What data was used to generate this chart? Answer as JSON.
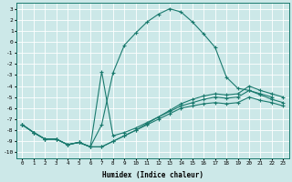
{
  "xlabel": "Humidex (Indice chaleur)",
  "bg_color": "#cce8e8",
  "grid_color": "#ffffff",
  "line_color": "#1a7a6e",
  "xlim": [
    -0.5,
    23.5
  ],
  "ylim": [
    -10.5,
    3.5
  ],
  "series": [
    {
      "x": [
        0,
        1,
        2,
        3,
        4,
        5,
        6,
        7,
        8,
        9,
        10,
        11,
        12,
        13,
        14,
        15,
        16,
        17,
        18,
        19,
        20,
        21,
        22
      ],
      "y": [
        -7.5,
        -8.2,
        -8.8,
        -8.8,
        -9.3,
        -9.1,
        -9.5,
        -7.5,
        -2.8,
        -0.3,
        0.8,
        1.8,
        2.5,
        3.0,
        2.7,
        1.8,
        0.7,
        -0.5,
        -3.2,
        -4.2,
        -4.4,
        -4.7,
        -5.0
      ]
    },
    {
      "x": [
        0,
        1,
        2,
        3,
        4,
        5,
        6,
        7,
        8,
        9,
        10,
        11,
        12,
        13,
        14,
        15,
        16,
        17,
        18,
        19,
        20,
        21,
        22,
        23
      ],
      "y": [
        -7.5,
        -8.2,
        -8.8,
        -8.8,
        -9.3,
        -9.1,
        -9.5,
        -2.7,
        -8.5,
        -8.2,
        -7.8,
        -7.3,
        -6.8,
        -6.3,
        -5.8,
        -5.5,
        -5.2,
        -5.0,
        -5.1,
        -5.0,
        -4.4,
        -4.8,
        -5.2,
        -5.5
      ]
    },
    {
      "x": [
        0,
        1,
        2,
        3,
        4,
        5,
        6,
        7,
        8,
        9,
        10,
        11,
        12,
        13,
        14,
        15,
        16,
        17,
        18,
        19,
        20,
        21,
        22,
        23
      ],
      "y": [
        -7.5,
        -8.2,
        -8.8,
        -8.8,
        -9.3,
        -9.1,
        -9.5,
        -9.5,
        -9.0,
        -8.5,
        -8.0,
        -7.4,
        -6.8,
        -6.2,
        -5.6,
        -5.2,
        -4.9,
        -4.7,
        -4.8,
        -4.7,
        -4.0,
        -4.4,
        -4.7,
        -5.0
      ]
    },
    {
      "x": [
        0,
        1,
        2,
        3,
        4,
        5,
        6,
        7,
        8,
        9,
        10,
        11,
        12,
        13,
        14,
        15,
        16,
        17,
        18,
        19,
        20,
        21,
        22,
        23
      ],
      "y": [
        -7.5,
        -8.2,
        -8.8,
        -8.8,
        -9.3,
        -9.1,
        -9.5,
        -9.5,
        -9.0,
        -8.5,
        -8.0,
        -7.5,
        -7.0,
        -6.5,
        -6.0,
        -5.8,
        -5.6,
        -5.5,
        -5.6,
        -5.5,
        -5.0,
        -5.3,
        -5.5,
        -5.8
      ]
    }
  ]
}
